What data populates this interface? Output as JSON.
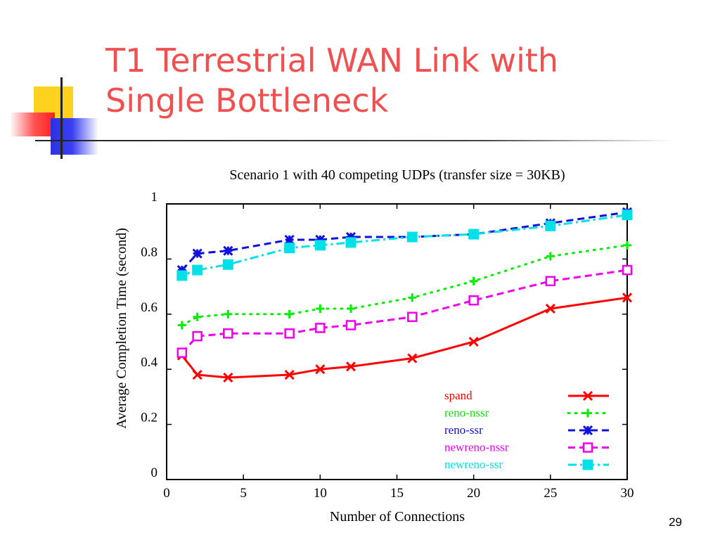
{
  "slide": {
    "title_line1": "T1 Terrestrial WAN Link with",
    "title_line2": "Single Bottleneck",
    "page_number": "29"
  },
  "colors": {
    "title": "#f05050",
    "spand": "#ff0000",
    "reno-nssr": "#00ee00",
    "reno-ssr": "#1010dd",
    "newreno-nssr": "#ee00ee",
    "newreno-ssr": "#00e0e8"
  },
  "chart_data": {
    "type": "line",
    "title": "Scenario 1 with 40 competing UDPs (transfer size = 30KB)",
    "xlabel": "Number of Connections",
    "ylabel": "Average Completion Time (second)",
    "xlim": [
      0,
      30
    ],
    "ylim": [
      0,
      1
    ],
    "xticks": [
      "0",
      "5",
      "10",
      "15",
      "20",
      "25",
      "30"
    ],
    "yticks": [
      "0",
      "0.2",
      "0.4",
      "0.6",
      "0.8",
      "1"
    ],
    "legend_position": "bottom-right",
    "grid": false,
    "series": [
      {
        "name": "spand",
        "color": "#ff0000",
        "dash": "solid",
        "marker": "x",
        "x": [
          1,
          2,
          4,
          8,
          10,
          12,
          16,
          20,
          25,
          30
        ],
        "y": [
          0.45,
          0.38,
          0.37,
          0.38,
          0.4,
          0.41,
          0.44,
          0.5,
          0.62,
          0.66
        ]
      },
      {
        "name": "reno-nssr",
        "color": "#00ee00",
        "dash": "dotted",
        "marker": "plus",
        "x": [
          1,
          2,
          4,
          8,
          10,
          12,
          16,
          20,
          25,
          30
        ],
        "y": [
          0.56,
          0.59,
          0.6,
          0.6,
          0.62,
          0.62,
          0.66,
          0.72,
          0.81,
          0.85
        ]
      },
      {
        "name": "reno-ssr",
        "color": "#1010dd",
        "dash": "dashed",
        "marker": "star",
        "x": [
          1,
          2,
          4,
          8,
          10,
          12,
          16,
          20,
          25,
          30
        ],
        "y": [
          0.76,
          0.82,
          0.83,
          0.87,
          0.87,
          0.88,
          0.88,
          0.89,
          0.93,
          0.97
        ]
      },
      {
        "name": "newreno-nssr",
        "color": "#ee00ee",
        "dash": "dashed",
        "marker": "square-open",
        "x": [
          1,
          2,
          4,
          8,
          10,
          12,
          16,
          20,
          25,
          30
        ],
        "y": [
          0.46,
          0.52,
          0.53,
          0.53,
          0.55,
          0.56,
          0.59,
          0.65,
          0.72,
          0.76
        ]
      },
      {
        "name": "newreno-ssr",
        "color": "#00e0e8",
        "dash": "dashdot",
        "marker": "square-filled",
        "x": [
          1,
          2,
          4,
          8,
          10,
          12,
          16,
          20,
          25,
          30
        ],
        "y": [
          0.74,
          0.76,
          0.78,
          0.84,
          0.85,
          0.86,
          0.88,
          0.89,
          0.92,
          0.96
        ]
      }
    ]
  }
}
